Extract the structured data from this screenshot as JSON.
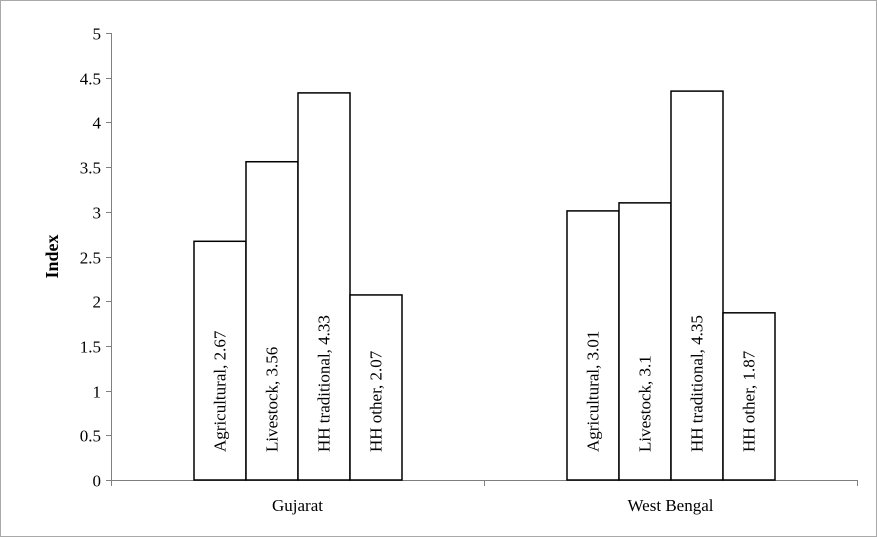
{
  "chart_data": {
    "type": "bar",
    "title": "",
    "xlabel": "",
    "ylabel": "Index",
    "ylim": [
      0,
      5
    ],
    "yticks": [
      "0",
      "0.5",
      "1",
      "1.5",
      "2",
      "2.5",
      "3",
      "3.5",
      "4",
      "4.5",
      "5"
    ],
    "categories": [
      "Gujarat",
      "West Bengal"
    ],
    "series": [
      {
        "name": "Agricultural",
        "values": [
          2.67,
          3.01
        ],
        "data_labels": [
          "Agricultural, 2.67",
          "Agricultural, 3.01"
        ]
      },
      {
        "name": "Livestock",
        "values": [
          3.56,
          3.1
        ],
        "data_labels": [
          "Livestock, 3.56",
          "Livestock, 3.1"
        ]
      },
      {
        "name": "HH traditional",
        "values": [
          4.33,
          4.35
        ],
        "data_labels": [
          "HH traditional, 4.33",
          "HH traditional, 4.35"
        ]
      },
      {
        "name": "HH other",
        "values": [
          2.07,
          1.87
        ],
        "data_labels": [
          "HH other, 2.07",
          "HH other, 1.87"
        ]
      }
    ],
    "grid": false,
    "legend": "none",
    "colors": {
      "bar_fill": "#ffffff",
      "bar_stroke": "#000000",
      "axis": "#7f7f7f",
      "frame": "#a9a9a9"
    }
  }
}
